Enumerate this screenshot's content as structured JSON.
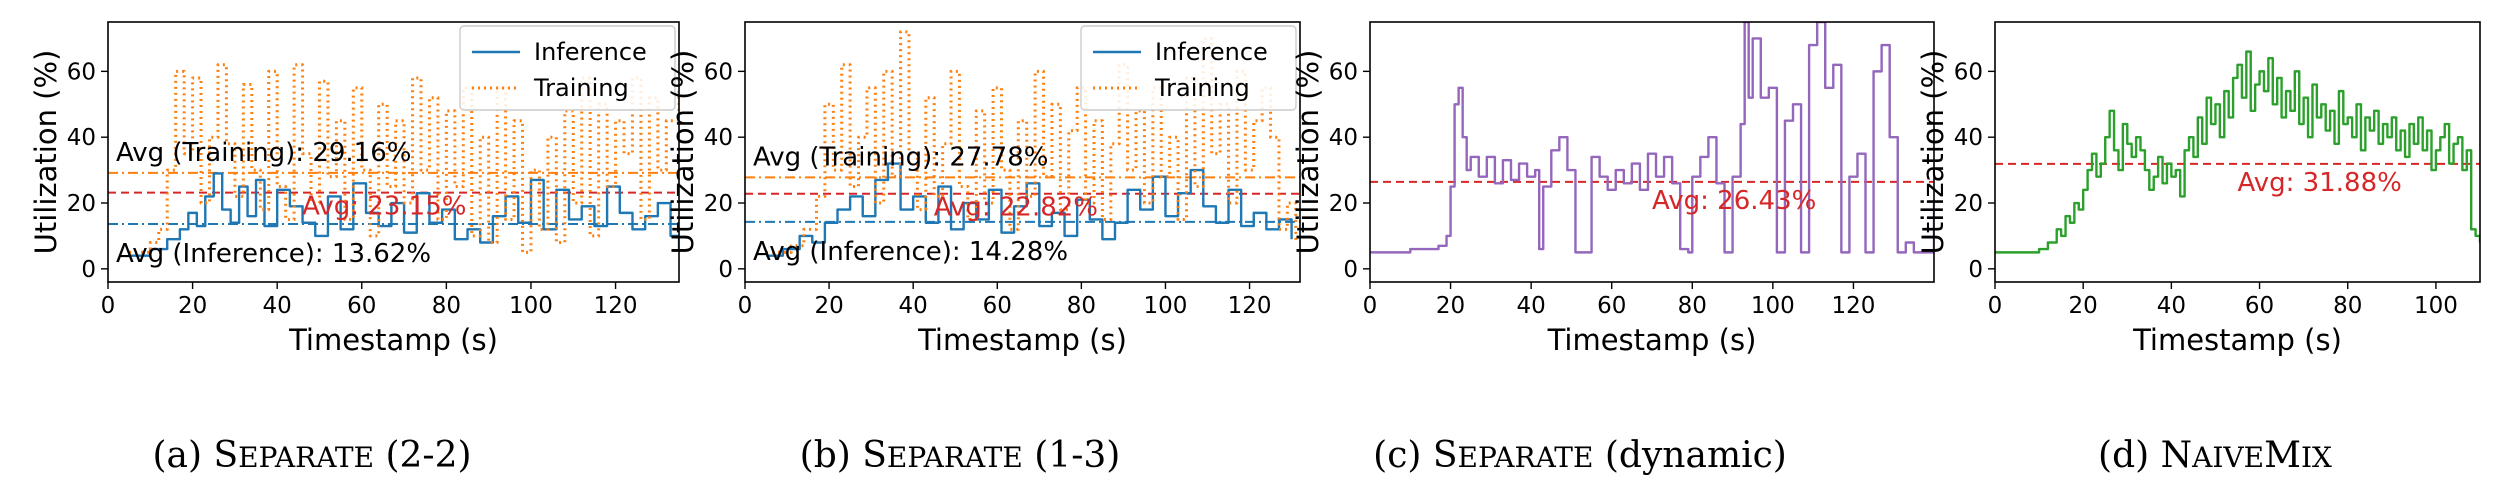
{
  "colors": {
    "inference": "#1f77b4",
    "training": "#ff7f0e",
    "dynamic": "#9467bd",
    "naivemix": "#2ca02c",
    "avg_line": "#d62728"
  },
  "chart_data": [
    {
      "type": "line",
      "caption_prefix": "(a)",
      "caption_name": "Separate",
      "caption_suffix": "(2-2)",
      "xlabel": "Timestamp (s)",
      "ylabel": "Utilization (%)",
      "xlim": [
        0,
        135
      ],
      "ylim": [
        -4,
        75
      ],
      "xticks": [
        0,
        20,
        40,
        60,
        80,
        100,
        120
      ],
      "yticks": [
        0,
        20,
        40,
        60
      ],
      "legend": "top-right",
      "series": [
        {
          "name": "Inference",
          "style": "solid",
          "color": "#1f77b4",
          "x": [
            5,
            10,
            14,
            17,
            19,
            21,
            23,
            25,
            27,
            29,
            31,
            33,
            35,
            37,
            40,
            43,
            46,
            49,
            52,
            55,
            58,
            61,
            64,
            67,
            70,
            73,
            76,
            79,
            82,
            85,
            88,
            91,
            94,
            97,
            100,
            103,
            106,
            109,
            112,
            115,
            118,
            121,
            124,
            127,
            130,
            133,
            135
          ],
          "y": [
            4,
            6,
            9,
            12,
            17,
            13,
            22,
            29,
            18,
            14,
            25,
            16,
            27,
            13,
            24,
            19,
            14,
            10,
            22,
            12,
            26,
            17,
            13,
            20,
            11,
            23,
            14,
            18,
            9,
            12,
            8,
            16,
            22,
            14,
            27,
            12,
            24,
            15,
            19,
            13,
            25,
            17,
            12,
            16,
            20,
            10,
            6
          ]
        },
        {
          "name": "Training",
          "style": "dotted",
          "color": "#ff7f0e",
          "x": [
            5,
            8,
            10,
            12,
            14,
            16,
            18,
            20,
            22,
            24,
            26,
            28,
            30,
            32,
            34,
            36,
            38,
            40,
            42,
            44,
            46,
            48,
            50,
            52,
            54,
            56,
            58,
            60,
            62,
            64,
            66,
            68,
            70,
            72,
            74,
            76,
            78,
            80,
            82,
            84,
            86,
            88,
            90,
            92,
            94,
            96,
            98,
            100,
            102,
            104,
            106,
            108,
            110,
            112,
            114,
            116,
            118,
            120,
            122,
            124,
            126,
            128,
            130,
            132,
            135
          ],
          "y": [
            5,
            5,
            8,
            12,
            30,
            60,
            35,
            58,
            20,
            40,
            62,
            38,
            22,
            56,
            30,
            18,
            60,
            25,
            15,
            62,
            35,
            20,
            57,
            28,
            45,
            15,
            55,
            30,
            10,
            50,
            25,
            45,
            20,
            58,
            30,
            52,
            15,
            48,
            25,
            55,
            10,
            40,
            8,
            55,
            15,
            45,
            5,
            30,
            12,
            40,
            8,
            48,
            20,
            58,
            10,
            50,
            25,
            45,
            35,
            58,
            15,
            52,
            30,
            45,
            58
          ]
        }
      ],
      "references": [
        {
          "label": "Avg (Training): 29.16%",
          "value": 29.16,
          "color": "#ff7f0e",
          "style": "dashdot"
        },
        {
          "label": "Avg: 23.15%",
          "value": 23.15,
          "color": "#d62728",
          "style": "dashed"
        },
        {
          "label": "Avg (Inference): 13.62%",
          "value": 13.62,
          "color": "#1f77b4",
          "style": "dashdot"
        }
      ]
    },
    {
      "type": "line",
      "caption_prefix": "(b)",
      "caption_name": "Separate",
      "caption_suffix": "(1-3)",
      "xlabel": "Timestamp (s)",
      "ylabel": "Utilization (%)",
      "xlim": [
        0,
        132
      ],
      "ylim": [
        -4,
        75
      ],
      "xticks": [
        0,
        20,
        40,
        60,
        80,
        100,
        120
      ],
      "yticks": [
        0,
        20,
        40,
        60
      ],
      "legend": "top-right",
      "series": [
        {
          "name": "Inference",
          "style": "solid",
          "color": "#1f77b4",
          "x": [
            5,
            9,
            13,
            16,
            19,
            22,
            25,
            28,
            31,
            34,
            37,
            40,
            43,
            46,
            49,
            52,
            55,
            58,
            61,
            64,
            67,
            70,
            73,
            76,
            79,
            82,
            85,
            88,
            91,
            94,
            97,
            100,
            103,
            106,
            109,
            112,
            115,
            118,
            121,
            124,
            127,
            130
          ],
          "y": [
            4,
            6,
            10,
            8,
            14,
            18,
            22,
            16,
            27,
            32,
            18,
            22,
            14,
            25,
            12,
            20,
            15,
            24,
            11,
            19,
            26,
            13,
            17,
            10,
            21,
            15,
            9,
            14,
            24,
            18,
            28,
            16,
            23,
            30,
            19,
            14,
            24,
            13,
            17,
            12,
            15,
            9
          ]
        },
        {
          "name": "Training",
          "style": "dotted",
          "color": "#ff7f0e",
          "x": [
            5,
            8,
            11,
            14,
            17,
            19,
            21,
            23,
            25,
            27,
            29,
            31,
            33,
            35,
            37,
            39,
            41,
            43,
            45,
            47,
            49,
            51,
            53,
            55,
            57,
            59,
            61,
            63,
            65,
            67,
            69,
            71,
            73,
            75,
            77,
            79,
            81,
            83,
            85,
            87,
            89,
            91,
            93,
            95,
            97,
            99,
            101,
            103,
            105,
            107,
            109,
            111,
            113,
            115,
            117,
            119,
            121,
            123,
            125,
            127,
            129,
            131
          ],
          "y": [
            5,
            5,
            7,
            12,
            22,
            50,
            30,
            62,
            25,
            40,
            55,
            20,
            60,
            28,
            72,
            35,
            18,
            52,
            22,
            38,
            60,
            25,
            15,
            48,
            20,
            55,
            30,
            12,
            45,
            22,
            60,
            28,
            50,
            18,
            42,
            55,
            20,
            45,
            15,
            38,
            62,
            30,
            48,
            20,
            55,
            28,
            40,
            15,
            58,
            25,
            70,
            35,
            50,
            20,
            60,
            30,
            45,
            55,
            40,
            12,
            20,
            8
          ]
        }
      ],
      "references": [
        {
          "label": "Avg (Training): 27.78%",
          "value": 27.78,
          "color": "#ff7f0e",
          "style": "dashdot"
        },
        {
          "label": "Avg: 22.82%",
          "value": 22.82,
          "color": "#d62728",
          "style": "dashed"
        },
        {
          "label": "Avg (Inference): 14.28%",
          "value": 14.28,
          "color": "#1f77b4",
          "style": "dashdot"
        }
      ]
    },
    {
      "type": "line",
      "caption_prefix": "(c)",
      "caption_name": "Separate",
      "caption_suffix": "(dynamic)",
      "xlabel": "Timestamp (s)",
      "ylabel": "Utilization (%)",
      "xlim": [
        0,
        140
      ],
      "ylim": [
        -4,
        75
      ],
      "xticks": [
        0,
        20,
        40,
        60,
        80,
        100,
        120
      ],
      "yticks": [
        0,
        20,
        40,
        60
      ],
      "legend": "none",
      "series": [
        {
          "name": "",
          "style": "solid",
          "color": "#9467bd",
          "x": [
            0,
            6,
            10,
            14,
            17,
            19,
            20,
            21,
            22,
            23,
            24,
            25,
            27,
            29,
            31,
            33,
            35,
            37,
            39,
            41,
            42,
            43,
            45,
            47,
            49,
            51,
            53,
            55,
            57,
            59,
            61,
            63,
            65,
            67,
            69,
            71,
            73,
            75,
            77,
            79,
            80,
            82,
            84,
            86,
            88,
            90,
            92,
            93,
            94,
            95,
            97,
            99,
            101,
            103,
            105,
            107,
            109,
            111,
            113,
            115,
            117,
            119,
            121,
            123,
            125,
            127,
            129,
            131,
            133,
            135,
            138,
            140
          ],
          "y": [
            5,
            5,
            6,
            6,
            7,
            10,
            25,
            50,
            55,
            40,
            30,
            34,
            28,
            34,
            26,
            33,
            27,
            32,
            28,
            30,
            6,
            25,
            36,
            40,
            30,
            5,
            5,
            34,
            28,
            24,
            30,
            26,
            32,
            24,
            35,
            28,
            34,
            26,
            6,
            5,
            28,
            34,
            40,
            26,
            5,
            28,
            44,
            75,
            52,
            70,
            52,
            55,
            5,
            45,
            50,
            5,
            68,
            75,
            55,
            62,
            5,
            28,
            35,
            5,
            60,
            68,
            40,
            5,
            8,
            5,
            5,
            20
          ]
        }
      ],
      "references": [
        {
          "label": "Avg: 26.43%",
          "value": 26.43,
          "color": "#d62728",
          "style": "dashed"
        }
      ]
    },
    {
      "type": "line",
      "caption_prefix": "(d)",
      "caption_name": "NaiveMix",
      "caption_suffix": "",
      "xlabel": "Timestamp (s)",
      "ylabel": "Utilization (%)",
      "xlim": [
        0,
        110
      ],
      "ylim": [
        -4,
        75
      ],
      "xticks": [
        0,
        20,
        40,
        60,
        80,
        100
      ],
      "yticks": [
        0,
        20,
        40,
        60
      ],
      "legend": "none",
      "series": [
        {
          "name": "",
          "style": "solid",
          "color": "#2ca02c",
          "x": [
            0,
            5,
            8,
            10,
            12,
            14,
            15,
            16,
            17,
            18,
            19,
            20,
            21,
            22,
            23,
            24,
            25,
            26,
            27,
            28,
            29,
            30,
            31,
            32,
            33,
            34,
            35,
            36,
            37,
            38,
            39,
            40,
            41,
            42,
            43,
            44,
            45,
            46,
            47,
            48,
            49,
            50,
            51,
            52,
            53,
            54,
            55,
            56,
            57,
            58,
            59,
            60,
            61,
            62,
            63,
            64,
            65,
            66,
            67,
            68,
            69,
            70,
            71,
            72,
            73,
            74,
            75,
            76,
            77,
            78,
            79,
            80,
            81,
            82,
            83,
            84,
            85,
            86,
            87,
            88,
            89,
            90,
            91,
            92,
            93,
            94,
            95,
            96,
            97,
            98,
            99,
            100,
            101,
            102,
            103,
            104,
            105,
            106,
            107,
            108,
            109,
            110
          ],
          "y": [
            5,
            5,
            5,
            6,
            8,
            12,
            10,
            16,
            14,
            20,
            18,
            24,
            30,
            35,
            28,
            32,
            40,
            48,
            36,
            30,
            44,
            38,
            34,
            40,
            36,
            30,
            24,
            28,
            34,
            26,
            32,
            28,
            30,
            22,
            36,
            40,
            34,
            46,
            38,
            52,
            44,
            50,
            40,
            54,
            46,
            58,
            62,
            52,
            66,
            48,
            56,
            60,
            54,
            64,
            50,
            58,
            46,
            54,
            48,
            60,
            44,
            52,
            40,
            56,
            46,
            50,
            42,
            48,
            38,
            54,
            44,
            46,
            40,
            50,
            36,
            46,
            42,
            48,
            38,
            44,
            40,
            46,
            36,
            42,
            34,
            44,
            38,
            46,
            36,
            42,
            30,
            36,
            40,
            44,
            32,
            38,
            40,
            30,
            36,
            12,
            10,
            8
          ]
        }
      ],
      "references": [
        {
          "label": "Avg: 31.88%",
          "value": 31.88,
          "color": "#d62728",
          "style": "dashed"
        }
      ]
    }
  ]
}
